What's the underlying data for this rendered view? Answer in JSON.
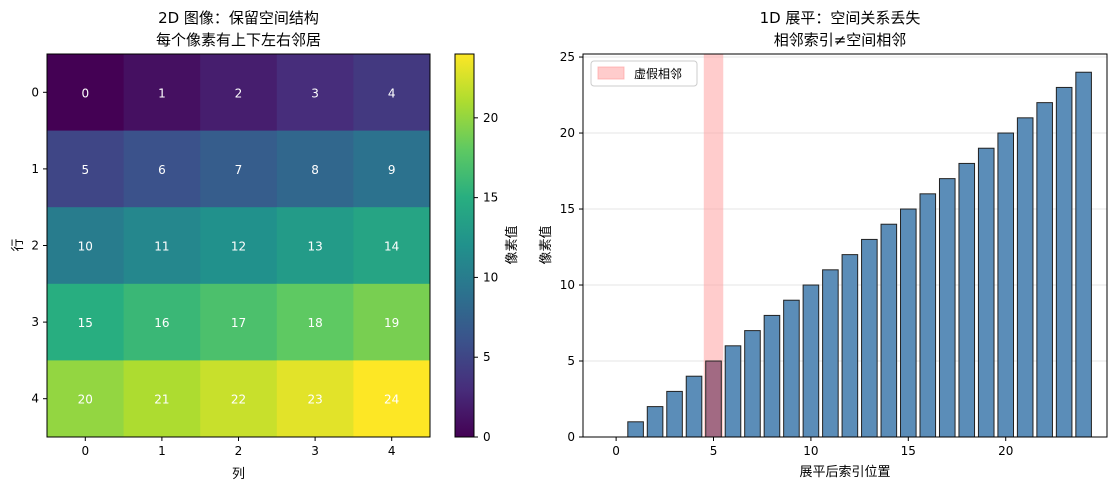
{
  "chart_data": [
    {
      "type": "heatmap",
      "title_lines": [
        "2D 图像：保留空间结构",
        "每个像素有上下左右邻居"
      ],
      "xlabel": "列",
      "ylabel": "行",
      "x_categories": [
        "0",
        "1",
        "2",
        "3",
        "4"
      ],
      "y_categories": [
        "0",
        "1",
        "2",
        "3",
        "4"
      ],
      "values": [
        [
          0,
          1,
          2,
          3,
          4
        ],
        [
          5,
          6,
          7,
          8,
          9
        ],
        [
          10,
          11,
          12,
          13,
          14
        ],
        [
          15,
          16,
          17,
          18,
          19
        ],
        [
          20,
          21,
          22,
          23,
          24
        ]
      ],
      "colormap": "viridis",
      "colorbar": {
        "label": "像素值",
        "range": [
          0,
          24
        ],
        "ticks": [
          0,
          5,
          10,
          15,
          20
        ]
      }
    },
    {
      "type": "bar",
      "title_lines": [
        "1D 展平：空间关系丢失",
        "相邻索引≠空间相邻"
      ],
      "xlabel": "展平后索引位置",
      "ylabel": "像素值",
      "x": [
        0,
        1,
        2,
        3,
        4,
        5,
        6,
        7,
        8,
        9,
        10,
        11,
        12,
        13,
        14,
        15,
        16,
        17,
        18,
        19,
        20,
        21,
        22,
        23,
        24
      ],
      "values": [
        0,
        1,
        2,
        3,
        4,
        5,
        6,
        7,
        8,
        9,
        10,
        11,
        12,
        13,
        14,
        15,
        16,
        17,
        18,
        19,
        20,
        21,
        22,
        23,
        24
      ],
      "xlim": [
        -1.7,
        25.2
      ],
      "ylim": [
        0,
        25.2
      ],
      "xticks": [
        0,
        5,
        10,
        15,
        20
      ],
      "yticks": [
        0,
        5,
        10,
        15,
        20,
        25
      ],
      "grid": "y",
      "bar_color": "#5b8db8",
      "highlight": {
        "label": "虚假相邻",
        "x_range": [
          4.5,
          5.5
        ],
        "color": "#ff9a9a"
      },
      "legend_position": "top-left"
    }
  ]
}
